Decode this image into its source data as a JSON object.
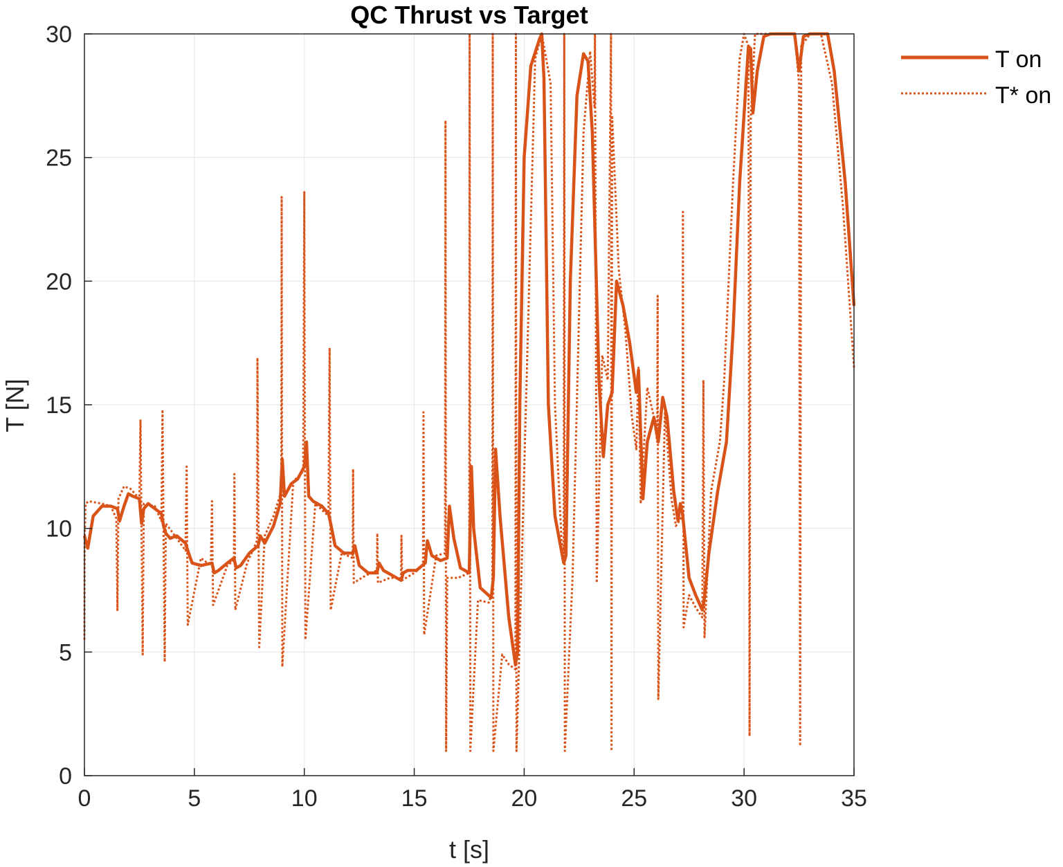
{
  "chart_data": {
    "type": "line",
    "title": "QC Thrust vs Target",
    "xlabel": "t [s]",
    "ylabel": "T [N]",
    "xlim": [
      0,
      35
    ],
    "ylim": [
      0,
      30
    ],
    "xticks": [
      "0",
      "5",
      "10",
      "15",
      "20",
      "25",
      "30",
      "35"
    ],
    "yticks": [
      "0",
      "5",
      "10",
      "15",
      "20",
      "25",
      "30"
    ],
    "grid": true,
    "legend_position": "top-right outside",
    "color": "#D95319",
    "series": [
      {
        "name": "T on",
        "style": "solid",
        "x": [
          0,
          0.15,
          0.4,
          0.8,
          1.2,
          1.5,
          1.6,
          1.8,
          2.0,
          2.2,
          2.5,
          2.6,
          2.7,
          2.9,
          3.2,
          3.5,
          3.6,
          3.7,
          3.9,
          4.2,
          4.6,
          4.7,
          4.9,
          5.3,
          5.8,
          5.9,
          6.1,
          6.5,
          6.8,
          6.9,
          7.1,
          7.5,
          7.9,
          8.0,
          8.2,
          8.6,
          8.9,
          9.0,
          9.1,
          9.4,
          9.7,
          10.0,
          10.1,
          10.2,
          10.4,
          10.8,
          11.1,
          11.2,
          11.4,
          11.8,
          12.2,
          12.3,
          12.5,
          12.9,
          13.3,
          13.4,
          13.6,
          14.0,
          14.4,
          14.5,
          14.7,
          15.1,
          15.5,
          15.6,
          15.8,
          16.2,
          16.5,
          16.6,
          16.8,
          17.1,
          17.5,
          17.6,
          17.7,
          18.0,
          18.5,
          18.6,
          18.7,
          18.9,
          19.3,
          19.6,
          19.7,
          19.8,
          20.0,
          20.3,
          20.7,
          20.8,
          20.9,
          21.1,
          21.4,
          21.8,
          21.9,
          22.1,
          22.4,
          22.7,
          22.9,
          23.1,
          23.4,
          23.6,
          23.8,
          24.0,
          24.2,
          24.5,
          24.8,
          25.1,
          25.2,
          25.4,
          25.6,
          25.9,
          26.1,
          26.3,
          26.5,
          26.8,
          27.0,
          27.1,
          27.2,
          27.5,
          27.8,
          28.1,
          28.2,
          28.4,
          28.8,
          29.2,
          29.5,
          29.8,
          30.2,
          30.3,
          30.4,
          30.6,
          30.9,
          31.2,
          31.8,
          32.3,
          32.5,
          32.7,
          33.0,
          33.4,
          33.8,
          34.1,
          34.6,
          35.0
        ],
        "values": [
          9.7,
          9.2,
          10.5,
          10.9,
          10.9,
          10.8,
          10.3,
          10.9,
          11.4,
          11.3,
          11.2,
          10.2,
          10.8,
          11.0,
          10.8,
          10.6,
          10.1,
          9.8,
          9.6,
          9.7,
          9.4,
          9.1,
          8.6,
          8.5,
          8.6,
          8.2,
          8.3,
          8.6,
          8.8,
          8.4,
          8.5,
          9.0,
          9.3,
          9.7,
          9.4,
          10.1,
          11.0,
          12.8,
          11.3,
          11.8,
          12.0,
          12.5,
          13.5,
          11.3,
          11.1,
          10.9,
          10.6,
          10.2,
          9.3,
          9.0,
          9.0,
          9.3,
          8.5,
          8.2,
          8.2,
          8.6,
          8.3,
          8.1,
          7.9,
          8.2,
          8.3,
          8.3,
          8.6,
          9.5,
          8.9,
          8.7,
          8.8,
          10.9,
          9.6,
          8.4,
          8.2,
          12.5,
          10.0,
          7.6,
          7.2,
          8.0,
          13.2,
          10.5,
          6.4,
          4.5,
          5.0,
          15.0,
          25.0,
          28.7,
          29.8,
          30.0,
          28.2,
          15.0,
          10.5,
          8.6,
          8.9,
          20.0,
          27.5,
          29.2,
          28.9,
          26.0,
          16.0,
          12.9,
          15.0,
          15.5,
          20.0,
          19.0,
          17.5,
          15.5,
          16.4,
          11.2,
          13.5,
          14.5,
          13.5,
          15.3,
          14.5,
          11.5,
          10.3,
          11.0,
          10.6,
          8.0,
          7.3,
          6.7,
          7.2,
          9.0,
          11.5,
          13.5,
          18.0,
          24.0,
          29.5,
          29.4,
          26.8,
          28.5,
          29.9,
          30.0,
          30.0,
          30.0,
          28.5,
          29.9,
          30.0,
          30.0,
          30.0,
          28.5,
          24.0,
          19.0
        ]
      },
      {
        "name": "T* on",
        "style": "dotted",
        "x": [
          0,
          0.01,
          0.05,
          0.2,
          0.8,
          1.2,
          1.45,
          1.5,
          1.55,
          1.8,
          2.1,
          2.5,
          2.55,
          2.65,
          2.7,
          3.2,
          3.5,
          3.55,
          3.65,
          3.7,
          4.2,
          4.6,
          4.65,
          4.7,
          5.3,
          5.75,
          5.8,
          5.85,
          6.5,
          6.8,
          6.82,
          6.86,
          7.4,
          7.85,
          7.87,
          7.95,
          8.2,
          8.6,
          8.95,
          8.97,
          9.0,
          9.5,
          9.95,
          10.0,
          10.05,
          10.5,
          11.1,
          11.15,
          11.2,
          11.7,
          12.2,
          12.22,
          12.25,
          12.8,
          13.3,
          13.32,
          13.35,
          13.9,
          14.4,
          14.42,
          14.45,
          15.0,
          15.4,
          15.42,
          15.45,
          16.0,
          16.4,
          16.42,
          16.45,
          16.5,
          17.0,
          17.5,
          17.52,
          17.55,
          17.9,
          18.4,
          18.55,
          18.57,
          18.6,
          19.0,
          19.3,
          19.6,
          19.62,
          19.65,
          19.9,
          20.5,
          20.8,
          21.2,
          21.4,
          21.7,
          21.8,
          21.82,
          21.85,
          22.2,
          22.7,
          23.0,
          23.2,
          23.22,
          23.3,
          23.55,
          23.8,
          23.95,
          23.97,
          24.0,
          24.3,
          24.6,
          24.9,
          25.1,
          25.2,
          25.3,
          25.6,
          25.9,
          26.05,
          26.07,
          26.1,
          26.4,
          26.7,
          26.9,
          27.2,
          27.22,
          27.25,
          27.5,
          27.8,
          28.1,
          28.15,
          28.2,
          28.5,
          28.9,
          29.1,
          29.3,
          29.5,
          29.8,
          30.0,
          30.2,
          30.25,
          30.3,
          30.5,
          30.9,
          31.5,
          32.3,
          32.5,
          32.55,
          32.6,
          33.0,
          33.5,
          34.0,
          34.5,
          35.0
        ],
        "values": [
          5.5,
          9.5,
          11.0,
          11.1,
          11.0,
          10.9,
          10.4,
          6.7,
          11.2,
          11.7,
          11.6,
          11.2,
          14.4,
          4.9,
          11.0,
          10.9,
          10.3,
          14.8,
          4.6,
          10.2,
          9.6,
          9.1,
          12.5,
          6.1,
          8.8,
          8.5,
          11.1,
          6.9,
          8.5,
          8.7,
          12.2,
          6.7,
          8.6,
          9.5,
          16.9,
          5.2,
          9.7,
          10.5,
          11.5,
          23.4,
          4.4,
          11.9,
          12.3,
          23.6,
          5.5,
          11.0,
          10.5,
          17.3,
          6.7,
          9.0,
          8.8,
          12.4,
          7.8,
          8.1,
          8.3,
          9.8,
          7.8,
          8.0,
          8.0,
          9.7,
          7.9,
          8.2,
          8.5,
          14.7,
          5.7,
          8.9,
          9.0,
          26.5,
          1.0,
          8.0,
          8.0,
          8.2,
          30.0,
          1.0,
          7.1,
          7.0,
          7.5,
          30.0,
          1.0,
          4.9,
          4.5,
          4.3,
          30.0,
          1.0,
          9.0,
          29.0,
          30.0,
          28.0,
          15.0,
          9.5,
          9.0,
          30.0,
          1.0,
          8.0,
          26.0,
          29.3,
          27.0,
          30.0,
          7.8,
          17.0,
          16.0,
          30.0,
          1.0,
          26.7,
          20.5,
          18.0,
          14.5,
          13.2,
          16.5,
          11.0,
          15.7,
          14.5,
          13.5,
          19.4,
          3.1,
          14.7,
          11.2,
          10.1,
          10.5,
          22.8,
          6.0,
          7.3,
          6.8,
          6.4,
          16.0,
          5.6,
          11.5,
          13.5,
          16.0,
          20.0,
          24.0,
          29.0,
          30.0,
          29.5,
          1.6,
          26.5,
          30.0,
          30.0,
          30.0,
          30.0,
          28.0,
          1.2,
          29.5,
          30.0,
          30.0,
          28.0,
          23.0,
          16.5
        ]
      }
    ]
  }
}
